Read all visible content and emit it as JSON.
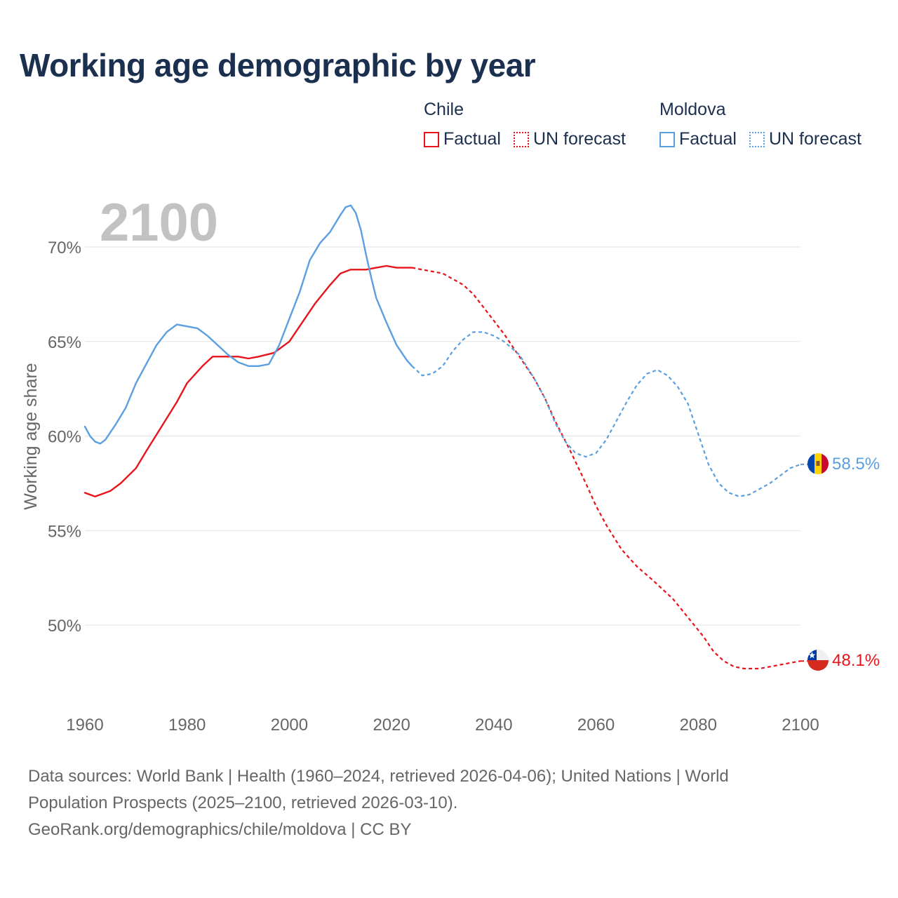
{
  "chart_data": {
    "type": "line",
    "title": "Working age demographic by year",
    "ylabel": "Working age share",
    "xlabel": "",
    "year_overlay": "2100",
    "xlim": [
      1960,
      2100
    ],
    "ylim": [
      46,
      73
    ],
    "x_ticks": [
      1960,
      1980,
      2000,
      2020,
      2040,
      2060,
      2080,
      2100
    ],
    "x_tick_labels": [
      "1960",
      "1980",
      "2000",
      "2020",
      "2040",
      "2060",
      "2080",
      "2100"
    ],
    "y_ticks": [
      50,
      55,
      60,
      65,
      70
    ],
    "y_tick_labels": [
      "50%",
      "55%",
      "60%",
      "65%",
      "70%"
    ],
    "grid": true,
    "legend_placement": "top-right",
    "series": [
      {
        "name": "Chile",
        "color": "#e8141b",
        "factual_label": "Factual",
        "forecast_label": "UN forecast",
        "end_label": "48.1%",
        "flag": "chile-flag",
        "factual": [
          [
            1960,
            57.0
          ],
          [
            1962,
            56.8
          ],
          [
            1965,
            57.1
          ],
          [
            1967,
            57.5
          ],
          [
            1970,
            58.3
          ],
          [
            1972,
            59.2
          ],
          [
            1975,
            60.5
          ],
          [
            1978,
            61.8
          ],
          [
            1980,
            62.8
          ],
          [
            1983,
            63.7
          ],
          [
            1985,
            64.2
          ],
          [
            1987,
            64.2
          ],
          [
            1990,
            64.2
          ],
          [
            1992,
            64.1
          ],
          [
            1994,
            64.2
          ],
          [
            1997,
            64.4
          ],
          [
            2000,
            65.0
          ],
          [
            2003,
            66.2
          ],
          [
            2005,
            67.0
          ],
          [
            2008,
            68.0
          ],
          [
            2010,
            68.6
          ],
          [
            2012,
            68.8
          ],
          [
            2015,
            68.8
          ],
          [
            2017,
            68.9
          ],
          [
            2019,
            69.0
          ],
          [
            2021,
            68.9
          ],
          [
            2024,
            68.9
          ]
        ],
        "forecast": [
          [
            2024,
            68.9
          ],
          [
            2026,
            68.8
          ],
          [
            2028,
            68.7
          ],
          [
            2030,
            68.6
          ],
          [
            2032,
            68.3
          ],
          [
            2034,
            68.0
          ],
          [
            2036,
            67.5
          ],
          [
            2038,
            66.8
          ],
          [
            2040,
            66.1
          ],
          [
            2042,
            65.4
          ],
          [
            2045,
            64.2
          ],
          [
            2048,
            63.0
          ],
          [
            2050,
            62.0
          ],
          [
            2052,
            60.8
          ],
          [
            2055,
            59.2
          ],
          [
            2058,
            57.5
          ],
          [
            2060,
            56.3
          ],
          [
            2062,
            55.3
          ],
          [
            2065,
            54.0
          ],
          [
            2068,
            53.1
          ],
          [
            2071,
            52.4
          ],
          [
            2073,
            51.9
          ],
          [
            2075,
            51.4
          ],
          [
            2078,
            50.4
          ],
          [
            2081,
            49.4
          ],
          [
            2083,
            48.6
          ],
          [
            2085,
            48.1
          ],
          [
            2087,
            47.8
          ],
          [
            2089,
            47.7
          ],
          [
            2092,
            47.7
          ],
          [
            2094,
            47.8
          ],
          [
            2096,
            47.9
          ],
          [
            2098,
            48.0
          ],
          [
            2100,
            48.1
          ]
        ]
      },
      {
        "name": "Moldova",
        "color": "#5b9fe0",
        "factual_label": "Factual",
        "forecast_label": "UN forecast",
        "end_label": "58.5%",
        "flag": "moldova-flag",
        "factual": [
          [
            1960,
            60.5
          ],
          [
            1961,
            60.0
          ],
          [
            1962,
            59.7
          ],
          [
            1963,
            59.6
          ],
          [
            1964,
            59.8
          ],
          [
            1966,
            60.6
          ],
          [
            1968,
            61.5
          ],
          [
            1970,
            62.8
          ],
          [
            1972,
            63.8
          ],
          [
            1974,
            64.8
          ],
          [
            1976,
            65.5
          ],
          [
            1978,
            65.9
          ],
          [
            1980,
            65.8
          ],
          [
            1982,
            65.7
          ],
          [
            1984,
            65.3
          ],
          [
            1986,
            64.8
          ],
          [
            1988,
            64.3
          ],
          [
            1990,
            63.9
          ],
          [
            1992,
            63.7
          ],
          [
            1994,
            63.7
          ],
          [
            1996,
            63.8
          ],
          [
            1998,
            64.8
          ],
          [
            2000,
            66.2
          ],
          [
            2002,
            67.6
          ],
          [
            2004,
            69.3
          ],
          [
            2006,
            70.2
          ],
          [
            2008,
            70.8
          ],
          [
            2010,
            71.7
          ],
          [
            2011,
            72.1
          ],
          [
            2012,
            72.2
          ],
          [
            2013,
            71.8
          ],
          [
            2014,
            70.9
          ],
          [
            2015,
            69.6
          ],
          [
            2016,
            68.4
          ],
          [
            2017,
            67.3
          ],
          [
            2019,
            66.0
          ],
          [
            2021,
            64.8
          ],
          [
            2023,
            64.0
          ],
          [
            2024,
            63.7
          ]
        ],
        "forecast": [
          [
            2024,
            63.7
          ],
          [
            2026,
            63.2
          ],
          [
            2028,
            63.3
          ],
          [
            2030,
            63.7
          ],
          [
            2032,
            64.5
          ],
          [
            2034,
            65.1
          ],
          [
            2036,
            65.5
          ],
          [
            2038,
            65.5
          ],
          [
            2040,
            65.3
          ],
          [
            2042,
            65.0
          ],
          [
            2045,
            64.3
          ],
          [
            2048,
            63.0
          ],
          [
            2050,
            62.0
          ],
          [
            2052,
            60.7
          ],
          [
            2054,
            59.7
          ],
          [
            2056,
            59.1
          ],
          [
            2058,
            58.9
          ],
          [
            2060,
            59.1
          ],
          [
            2062,
            59.8
          ],
          [
            2064,
            60.8
          ],
          [
            2066,
            61.8
          ],
          [
            2068,
            62.7
          ],
          [
            2070,
            63.3
          ],
          [
            2072,
            63.5
          ],
          [
            2074,
            63.2
          ],
          [
            2076,
            62.6
          ],
          [
            2078,
            61.7
          ],
          [
            2080,
            60.1
          ],
          [
            2082,
            58.5
          ],
          [
            2084,
            57.5
          ],
          [
            2086,
            57.0
          ],
          [
            2088,
            56.8
          ],
          [
            2090,
            56.9
          ],
          [
            2092,
            57.2
          ],
          [
            2094,
            57.5
          ],
          [
            2096,
            57.9
          ],
          [
            2098,
            58.3
          ],
          [
            2100,
            58.5
          ]
        ]
      }
    ]
  },
  "footer": {
    "line1": "Data sources: World Bank | Health (1960–2024, retrieved 2026-04-06); United Nations | World",
    "line2": "Population Prospects (2025–2100, retrieved 2026-03-10).",
    "line3": "GeoRank.org/demographics/chile/moldova | CC BY"
  }
}
